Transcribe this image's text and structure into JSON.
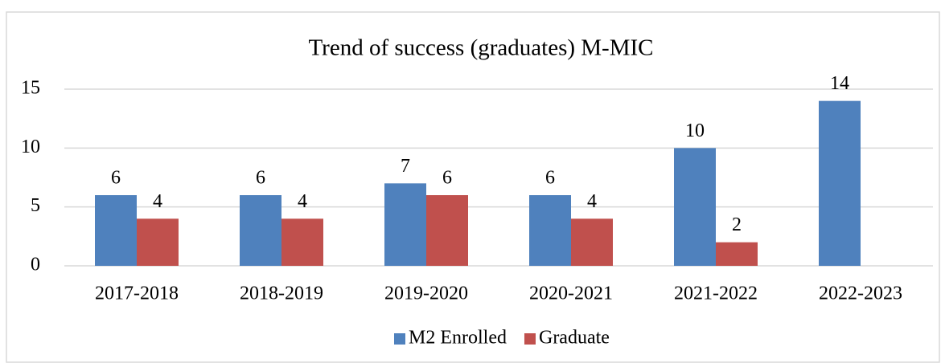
{
  "chart_data": {
    "type": "bar",
    "title": "Trend of success (graduates) M-MIC",
    "categories": [
      "2017-2018",
      "2018-2019",
      "2019-2020",
      "2020-2021",
      "2021-2022",
      "2022-2023"
    ],
    "series": [
      {
        "name": "M2 Enrolled",
        "color": "#4f81bd",
        "values": [
          6,
          6,
          7,
          6,
          10,
          14
        ]
      },
      {
        "name": "Graduate",
        "color": "#c0504d",
        "values": [
          4,
          4,
          6,
          4,
          2,
          null
        ]
      }
    ],
    "ylim": [
      0,
      15
    ],
    "yticks": [
      0,
      5,
      10,
      15
    ],
    "grid": true,
    "legend": "bottom"
  }
}
